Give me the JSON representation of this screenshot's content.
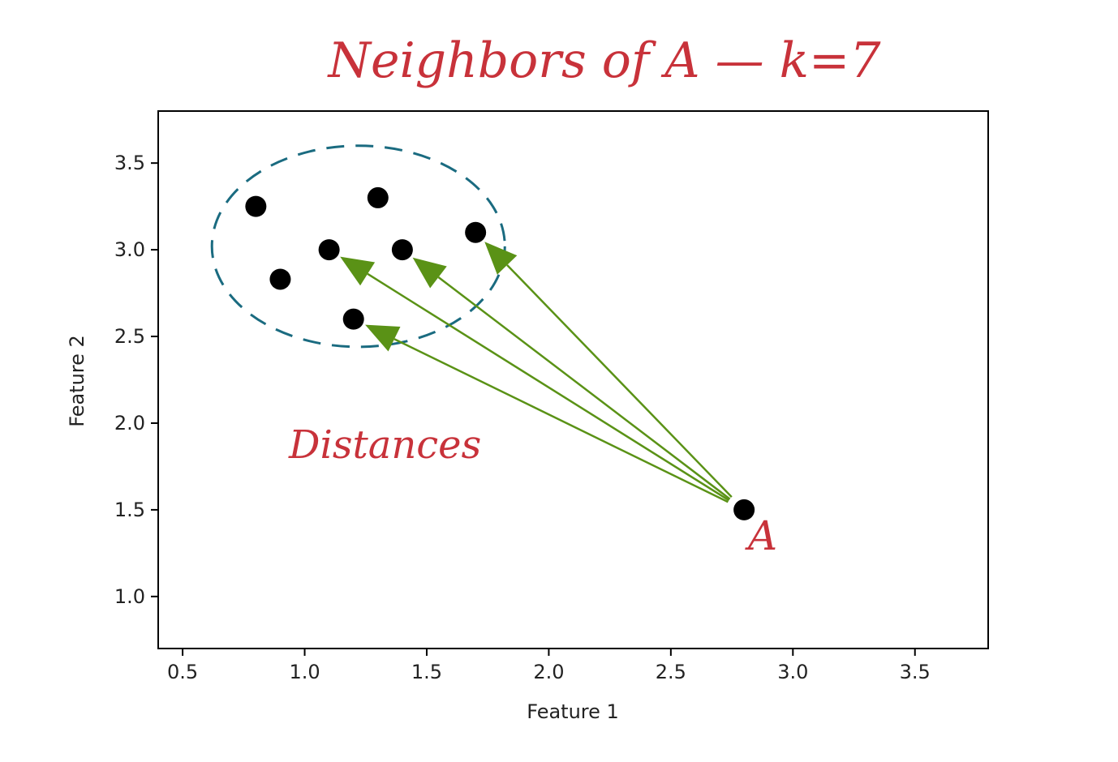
{
  "chart_data": {
    "type": "scatter",
    "title": "Neighbors of A — k=7",
    "xlabel": "Feature 1",
    "ylabel": "Feature 2",
    "xlim": [
      0.4,
      3.8
    ],
    "ylim": [
      0.7,
      3.8
    ],
    "xticks": [
      "0.5",
      "1.0",
      "1.5",
      "2.0",
      "2.5",
      "3.0",
      "3.5"
    ],
    "yticks": [
      "1.0",
      "1.5",
      "2.0",
      "2.5",
      "3.0",
      "3.5"
    ],
    "grid": false,
    "points": [
      {
        "x": 0.8,
        "y": 3.25
      },
      {
        "x": 1.3,
        "y": 3.3
      },
      {
        "x": 1.1,
        "y": 3.0
      },
      {
        "x": 1.4,
        "y": 3.0
      },
      {
        "x": 1.7,
        "y": 3.1
      },
      {
        "x": 0.9,
        "y": 2.83
      },
      {
        "x": 1.2,
        "y": 2.6
      },
      {
        "x": 2.8,
        "y": 1.5,
        "label": "A"
      }
    ],
    "annotations": {
      "distances_label": "Distances",
      "point_label": "A",
      "arrow_targets": [
        {
          "x": 1.1,
          "y": 3.0
        },
        {
          "x": 1.4,
          "y": 3.0
        },
        {
          "x": 1.7,
          "y": 3.1
        },
        {
          "x": 1.2,
          "y": 2.6
        }
      ],
      "neighborhood_center": {
        "x": 1.22,
        "y": 3.02
      },
      "neighborhood_radius": {
        "x": 0.6,
        "y": 0.58
      }
    },
    "colors": {
      "points": "#000000",
      "arrows": "#5a9216",
      "ellipse": "#1a6b80",
      "annotation_text": "#c8323a",
      "axes": "#000000"
    }
  }
}
